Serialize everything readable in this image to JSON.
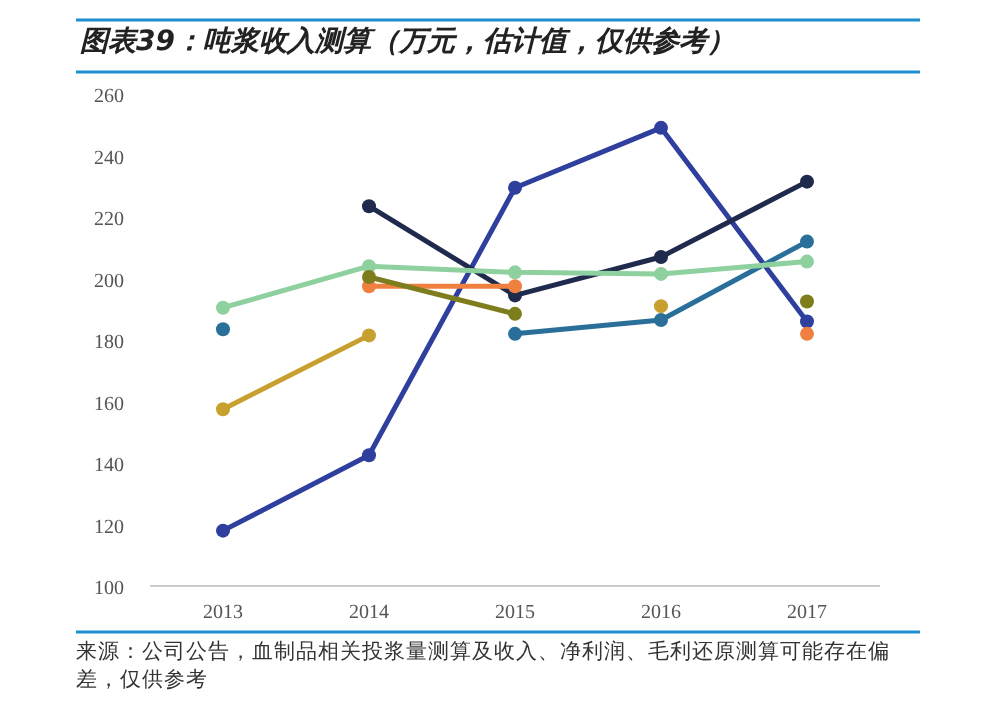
{
  "chart_data": {
    "type": "line",
    "title": "图表39：吨浆收入测算（万元，估计值，仅供参考）",
    "categories": [
      "2013",
      "2014",
      "2015",
      "2016",
      "2017"
    ],
    "series": [
      {
        "color": "#2e3f9e",
        "values": [
          118,
          142.5,
          229.5,
          249,
          186
        ]
      },
      {
        "color": "#1f2a4d",
        "values": [
          null,
          223.5,
          194.5,
          207,
          231.5
        ]
      },
      {
        "color": "#2a6f9a",
        "values": [
          183.5,
          null,
          182,
          186.5,
          212
        ]
      },
      {
        "color": "#8fd19e",
        "values": [
          190.5,
          204,
          202,
          201.5,
          205.5
        ]
      },
      {
        "color": "#f08040",
        "values": [
          null,
          197.5,
          197.5,
          null,
          182
        ]
      },
      {
        "color": "#7d7d1e",
        "values": [
          null,
          200.5,
          188.5,
          null,
          192.5
        ]
      },
      {
        "color": "#c8a030",
        "values": [
          157.5,
          181.5,
          null,
          191,
          null
        ]
      }
    ],
    "ylim": [
      100,
      260
    ],
    "yticks": [
      100,
      120,
      140,
      160,
      180,
      200,
      220,
      240,
      260
    ],
    "marker": "circle",
    "grid": false,
    "annotations": [
      "来源：公司公告，血制品相关投浆量测算及收入、净利润、毛利还原测算可能存在偏差，仅供参考"
    ]
  }
}
